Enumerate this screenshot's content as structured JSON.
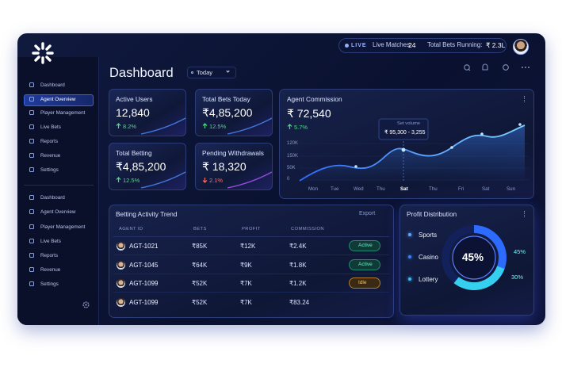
{
  "top_bar": {
    "live": "LIVE",
    "live_matches_label": "Live Matches:",
    "live_matches": "24",
    "total_bets_label": "Total Bets Running:",
    "total_bets": "₹ 2.3L"
  },
  "sidebar": {
    "primary": [
      "Dashboard",
      "Agent Overview",
      "Player Management",
      "Live Bets",
      "Reports",
      "Revenue",
      "Settings"
    ],
    "secondary": [
      "Dashboard",
      "Agent Overview",
      "Player Management",
      "Live Bets",
      "Reports",
      "Revenue",
      "Settings"
    ]
  },
  "header": {
    "title": "Dashboard",
    "period": "Today"
  },
  "cards": [
    {
      "label": "Active Users",
      "value": "12,840",
      "change": "8.2%",
      "trend": "up"
    },
    {
      "label": "Total Bets Today",
      "value": "₹4,85,200",
      "change": "12.5%",
      "trend": "up"
    },
    {
      "label": "Total Betting",
      "value": "₹4,85,200",
      "change": "12.5%",
      "trend": "up"
    },
    {
      "label": "Pending Withdrawals",
      "value": "₹ 18,320",
      "change": "2.1%",
      "trend": "down"
    }
  ],
  "commission": {
    "title": "Agent Commission",
    "value": "₹ 72,540",
    "change": "5.7%",
    "tooltip_label": "Set volume",
    "tooltip_value": "₹ 95,300 - 3,255",
    "y_labels": [
      "120K",
      "150K",
      "50K",
      "0"
    ],
    "x_labels": [
      "Mon",
      "Tue",
      "Wed",
      "Thu",
      "Sat",
      "Thu",
      "Fri",
      "Sat",
      "Sun"
    ]
  },
  "activity": {
    "title": "Betting Activity Trend",
    "export": "Export",
    "columns": [
      "AGENT ID",
      "BETS",
      "PROFIT",
      "COMMISSION"
    ],
    "rows": [
      [
        "AGT-1021",
        "₹85K",
        "₹12K",
        "₹2.4K",
        "Active"
      ],
      [
        "AGT-1045",
        "₹64K",
        "₹9K",
        "₹1.8K",
        "Active"
      ],
      [
        "AGT-1099",
        "₹52K",
        "₹7K",
        "₹1.2K",
        "Idle"
      ],
      [
        "AGT-1099",
        "₹52K",
        "₹7K",
        "₹83.24"
      ]
    ]
  },
  "profit": {
    "title": "Profit Distribution",
    "segments": [
      "Sports",
      "Casino",
      "Lottery"
    ],
    "center": "45%",
    "ring_labels": [
      "45%",
      "30%"
    ]
  }
}
